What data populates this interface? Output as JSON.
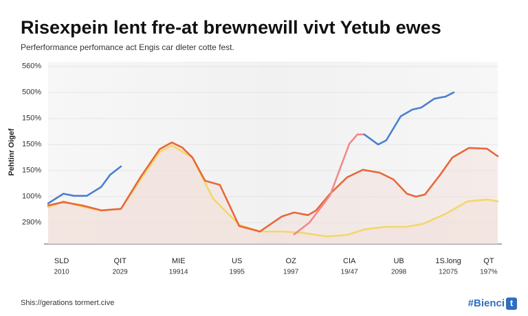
{
  "chart_data": {
    "type": "line",
    "title": "Risexpein lent fre-at brewnewill vivt Yetub ewes",
    "subtitle": "Perferformance perfomance act Engis car dleter cotte fest.",
    "y_label": "Pehtinr Oigef",
    "xlim": [
      0,
      100
    ],
    "ylim": [
      0.18,
      7.18
    ],
    "yticks": [
      {
        "value": 1,
        "label": "290%"
      },
      {
        "value": 2,
        "label": "100%"
      },
      {
        "value": 3,
        "label": "150%"
      },
      {
        "value": 4,
        "label": "150%"
      },
      {
        "value": 5,
        "label": "150%"
      },
      {
        "value": 6,
        "label": "500%"
      },
      {
        "value": 7,
        "label": "560%"
      }
    ],
    "xticks": [
      {
        "value": 3,
        "label": "SLD",
        "sublabel": "2010"
      },
      {
        "value": 16,
        "label": "QIT",
        "sublabel": "2029"
      },
      {
        "value": 29,
        "label": "MIE",
        "sublabel": "19914"
      },
      {
        "value": 42,
        "label": "US",
        "sublabel": "1995"
      },
      {
        "value": 54,
        "label": "OZ",
        "sublabel": "1997"
      },
      {
        "value": 67,
        "label": "CIA",
        "sublabel": "19/47"
      },
      {
        "value": 78,
        "label": "UB",
        "sublabel": "2098"
      },
      {
        "value": 89,
        "label": "1S.long",
        "sublabel": "12075"
      },
      {
        "value": 98,
        "label": "QT",
        "sublabel": "197%"
      }
    ],
    "grid": true,
    "series": [
      {
        "color": "#f3d76a",
        "fill": "#f2ddd6",
        "x": [
          0,
          3.4,
          7.6,
          11.9,
          16.2,
          20.6,
          24.8,
          27.5,
          32.1,
          36.7,
          42.5,
          47.1,
          52.0,
          56.6,
          62.1,
          66.5,
          70.3,
          74.9,
          79.5,
          83.3,
          88.4,
          93.3,
          97.6,
          100
        ],
        "values": [
          1.58,
          1.82,
          1.61,
          1.47,
          1.53,
          2.66,
          3.71,
          3.97,
          3.5,
          1.92,
          0.92,
          0.66,
          0.66,
          0.61,
          0.47,
          0.53,
          0.74,
          0.84,
          0.84,
          0.95,
          1.34,
          1.82,
          1.89,
          1.82
        ]
      },
      {
        "color": "#e8673a",
        "fill": "#f2ddd6",
        "x": [
          0,
          3.4,
          7.6,
          11.9,
          16.2,
          20.6,
          24.8,
          27.5,
          29.8,
          32.1,
          34.9,
          38.2,
          42.5,
          47.1,
          52.0,
          54.7,
          57.8,
          59.6,
          62.7,
          66.5,
          70.0,
          73.7,
          76.8,
          79.8,
          81.8,
          83.8,
          87.2,
          89.9,
          93.6,
          97.6,
          100
        ],
        "values": [
          1.66,
          1.79,
          1.66,
          1.47,
          1.53,
          2.76,
          3.82,
          4.08,
          3.89,
          3.5,
          2.61,
          2.45,
          0.87,
          0.66,
          1.24,
          1.39,
          1.29,
          1.47,
          2.11,
          2.74,
          3.03,
          2.92,
          2.66,
          2.11,
          2.0,
          2.08,
          2.84,
          3.5,
          3.87,
          3.84,
          3.55
        ]
      },
      {
        "color": "#f08a8a",
        "x": [
          54.7,
          58.1,
          62.7,
          67.0,
          68.8,
          70.3
        ],
        "values": [
          0.55,
          1.0,
          2.05,
          4.03,
          4.39,
          4.39
        ]
      },
      {
        "color": "#4a7fd0",
        "x": [
          0,
          3.4,
          5.8,
          8.6,
          11.8,
          13.8,
          16.2
        ],
        "values": [
          1.74,
          2.11,
          2.03,
          2.03,
          2.37,
          2.84,
          3.16
        ]
      },
      {
        "color": "#4a7fd0",
        "x": [
          70.3,
          73.4,
          75.2,
          78.4,
          81.0,
          83.0,
          85.9,
          88.4,
          90.2
        ],
        "values": [
          4.39,
          4.0,
          4.16,
          5.08,
          5.34,
          5.42,
          5.76,
          5.84,
          6.0
        ]
      }
    ]
  },
  "footer": {
    "source": "Shis://gerations tormert.cive",
    "brand": "#Bienci",
    "brand_icon": "t"
  }
}
